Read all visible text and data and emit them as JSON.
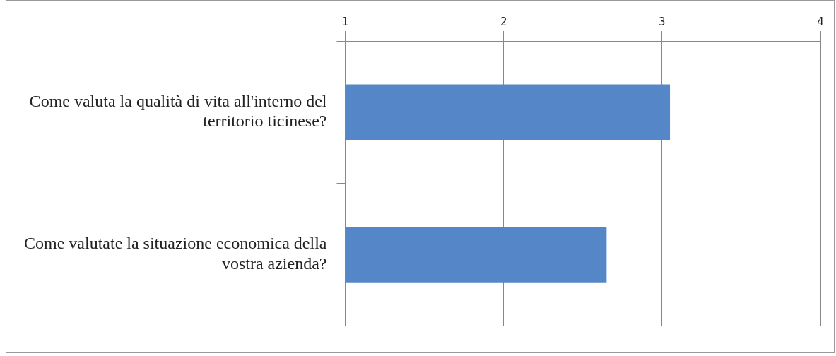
{
  "chart_data": {
    "type": "bar",
    "orientation": "horizontal",
    "categories": [
      "Come valuta la qualità di vita all'interno del territorio ticinese?",
      "Come valutate la situazione economica della vostra azienda?"
    ],
    "values": [
      3.05,
      2.65
    ],
    "color": "#5587c8",
    "xlim": [
      1,
      4
    ],
    "xticks": [
      1,
      2,
      3,
      4
    ],
    "grid": "x"
  }
}
